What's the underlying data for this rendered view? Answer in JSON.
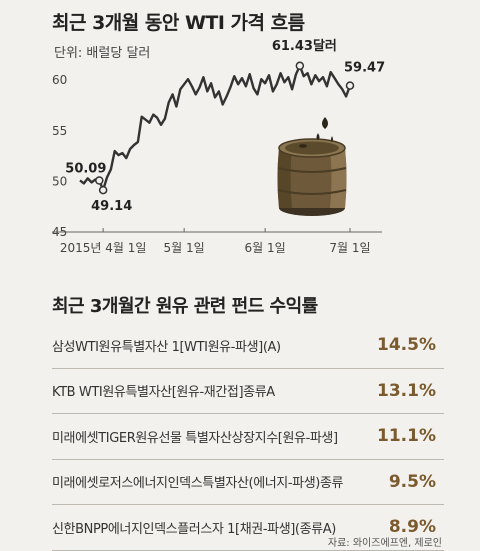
{
  "title": "최근 3개월 동안 WTI 가격 흐름",
  "unit_label": "단위: 배럴당 달러",
  "chart_data": {
    "type": "line",
    "title": "최근 3개월 동안 WTI 가격 흐름",
    "unit": "단위: 배럴당 달러",
    "xlabel": "",
    "ylabel": "",
    "ylim": [
      45,
      62
    ],
    "yticks": [
      45,
      50,
      55,
      60
    ],
    "xticks": [
      {
        "label": "2015년 4월 1일",
        "index": 6
      },
      {
        "label": "5월 1일",
        "index": 27
      },
      {
        "label": "6월 1일",
        "index": 48
      },
      {
        "label": "7월 1일",
        "index": 70
      }
    ],
    "annotations": [
      {
        "label": "50.09",
        "index": 5
      },
      {
        "label": "49.14",
        "index": 6
      },
      {
        "label": "61.43달러",
        "index": 57
      },
      {
        "label": "59.47",
        "index": 70
      }
    ],
    "series": [
      {
        "values": [
          50.1,
          49.8,
          50.3,
          49.9,
          50.2,
          50.09,
          49.14,
          50.4,
          51.2,
          53.0,
          52.6,
          52.8,
          52.3,
          53.2,
          53.6,
          53.9,
          56.4,
          56.1,
          55.8,
          56.6,
          56.3,
          55.6,
          56.2,
          57.8,
          58.6,
          57.4,
          59.1,
          59.6,
          60.1,
          59.4,
          58.6,
          59.3,
          60.3,
          58.9,
          59.7,
          58.3,
          58.9,
          57.6,
          58.4,
          59.3,
          60.4,
          59.6,
          60.2,
          59.4,
          60.6,
          59.2,
          58.6,
          60.1,
          59.7,
          60.5,
          58.9,
          59.6,
          60.7,
          59.8,
          60.3,
          59.1,
          60.6,
          61.43,
          60.4,
          60.7,
          59.6,
          60.5,
          59.9,
          60.3,
          59.4,
          60.8,
          60.2,
          59.6,
          59.1,
          58.4,
          59.47
        ]
      }
    ],
    "grid": false
  },
  "section2_title": "최근 3개월간 원유 관련 펀드 수익률",
  "funds": [
    {
      "name": "삼성WTI원유특별자산 1[WTI원유-파생](A)",
      "return": "14.5%"
    },
    {
      "name": "KTB WTI원유특별자산[원유-재간접]종류A",
      "return": "13.1%"
    },
    {
      "name": "미래에셋TIGER원유선물 특별자산상장지수[원유-파생]",
      "return": "11.1%"
    },
    {
      "name": "미래에셋로저스에너지인덱스특별자산(에너지-파생)종류",
      "return": "9.5%"
    },
    {
      "name": "신한BNPP에너지인덱스플러스자 1[채권-파생](종류A)",
      "return": "8.9%"
    }
  ],
  "source": "자료: 와이즈에프엔, 제로인",
  "colors": {
    "line": "#333333",
    "background": "#f3f1ed",
    "return_text": "#7a5a2e",
    "barrel": "#6e5a3a"
  }
}
